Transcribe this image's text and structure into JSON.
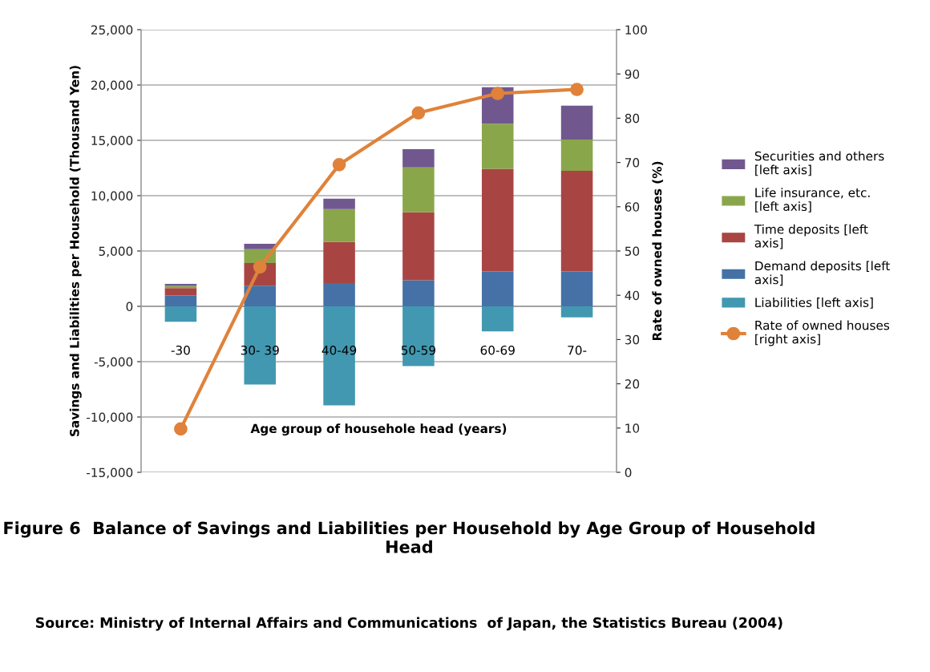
{
  "chart_data": {
    "type": "bar",
    "stacked": true,
    "title": "Figure 6  Balance of Savings and Liabilities per Household by Age Group of Household Head",
    "xlabel": "Age group of househole head (years)",
    "ylabel": "Savings and Liabilities per Household (Thousand Yen)",
    "y2label": "Rate of owned houses (%)",
    "annotations": [
      "Source: Ministry of Internal Affairs and Communications  of Japan, the Statistics Bureau (2004)"
    ],
    "categories": [
      "-30",
      "30- 39",
      "40-49",
      "50-59",
      "60-69",
      "70-"
    ],
    "series": [
      {
        "name": "Liabilities [left axis]",
        "color": "#4298b0",
        "values": [
          -1400,
          -7070,
          -8950,
          -5400,
          -2270,
          -990
        ]
      },
      {
        "name": "Demand deposits [left\naxis]",
        "color": "#4571a6",
        "values": [
          970,
          1870,
          2110,
          2350,
          3150,
          3150
        ]
      },
      {
        "name": "Time deposits [left\naxis]",
        "color": "#a84543",
        "values": [
          680,
          2050,
          3700,
          6150,
          9270,
          9100
        ]
      },
      {
        "name": "Life insurance, etc.\n[left axis]",
        "color": "#8aa64b",
        "values": [
          190,
          1240,
          2980,
          4060,
          4090,
          2830
        ]
      },
      {
        "name": "Securities and others\n[left axis]",
        "color": "#70588f",
        "values": [
          190,
          500,
          940,
          1650,
          3290,
          3050
        ]
      },
      {
        "name": "Rate of owned houses\n[right axis]",
        "type": "line",
        "axis": "y2",
        "color": "#e0823a",
        "marker": "circle",
        "values": [
          9.8,
          46.4,
          69.5,
          81.2,
          85.6,
          86.5
        ]
      }
    ],
    "ylim": [
      -15000,
      25000
    ],
    "yticks": [
      {
        "value": -15000,
        "label": "-15,000"
      },
      {
        "value": -10000,
        "label": "-10,000"
      },
      {
        "value": -5000,
        "label": "-5,000"
      },
      0,
      {
        "value": 5000,
        "label": "5,000"
      },
      {
        "value": 10000,
        "label": "10,000"
      },
      {
        "value": 15000,
        "label": "15,000"
      },
      {
        "value": 20000,
        "label": "20,000"
      },
      {
        "value": 25000,
        "label": "25,000"
      }
    ],
    "y2lim": [
      0,
      100
    ],
    "y2ticks": [
      0,
      10,
      20,
      30,
      40,
      50,
      60,
      70,
      80,
      90,
      100
    ],
    "grid": "y",
    "legend": "right"
  }
}
